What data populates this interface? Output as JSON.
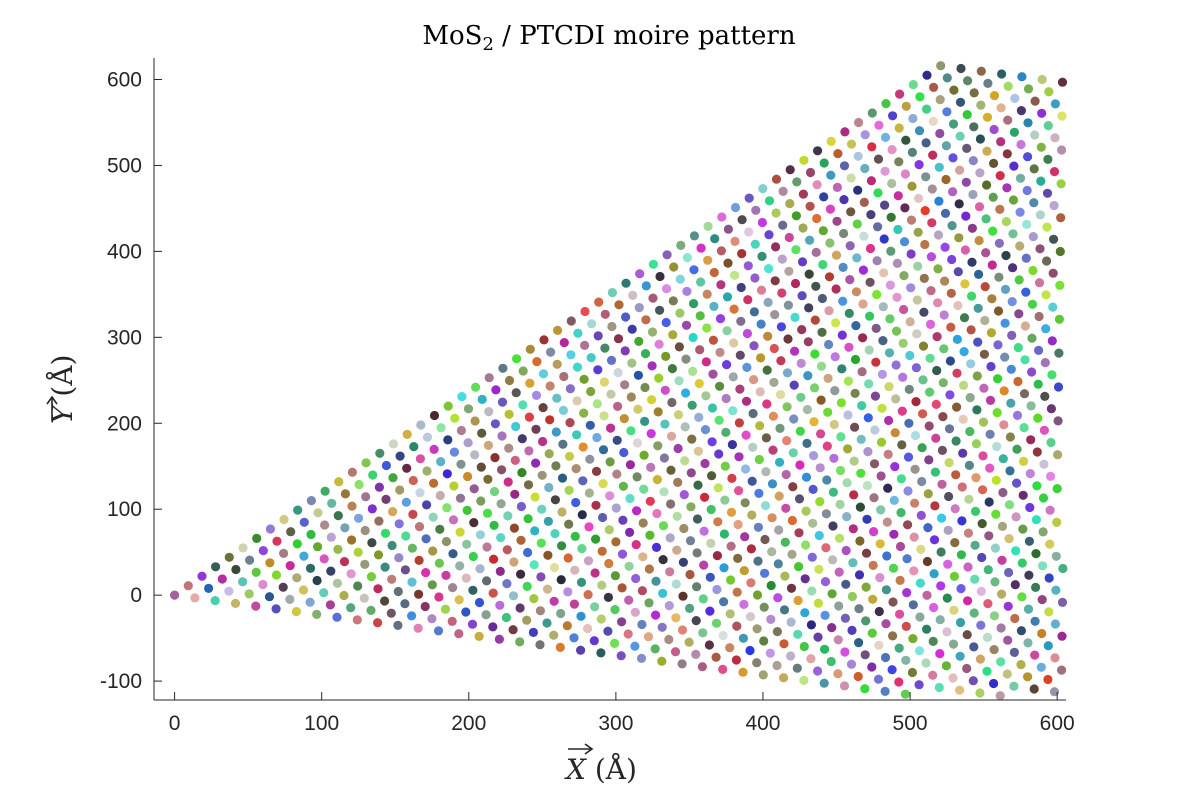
{
  "chart_data": {
    "type": "scatter",
    "title": "MoS",
    "title_subscript": "2",
    "title_rest": " / PTCDI moire pattern",
    "xlabel_symbol": "X",
    "xlabel_unit": " (Å)",
    "ylabel_symbol": "Y",
    "ylabel_unit": " (Å)",
    "xlim": [
      -14,
      606
    ],
    "ylim": [
      -122,
      625
    ],
    "xticks": [
      0,
      100,
      200,
      300,
      400,
      500,
      600
    ],
    "xtick_labels": [
      "0",
      "100",
      "200",
      "300",
      "400",
      "500",
      "600"
    ],
    "yticks": [
      -100,
      0,
      100,
      200,
      300,
      400,
      500,
      600
    ],
    "ytick_labels": [
      "-100",
      "0",
      "100",
      "200",
      "300",
      "400",
      "500",
      "600"
    ],
    "grid": false,
    "lattice": {
      "origin": [
        0,
        0
      ],
      "a1": [
        9.3,
        11.0
      ],
      "a2": [
        13.8,
        -3.2
      ],
      "i_range": [
        0,
        56
      ],
      "j_range": [
        0,
        44
      ],
      "clip_x": [
        0,
        604
      ],
      "clip_y": [
        -118,
        623
      ],
      "marker": "filled-circle",
      "colors": "random-rgb"
    }
  }
}
